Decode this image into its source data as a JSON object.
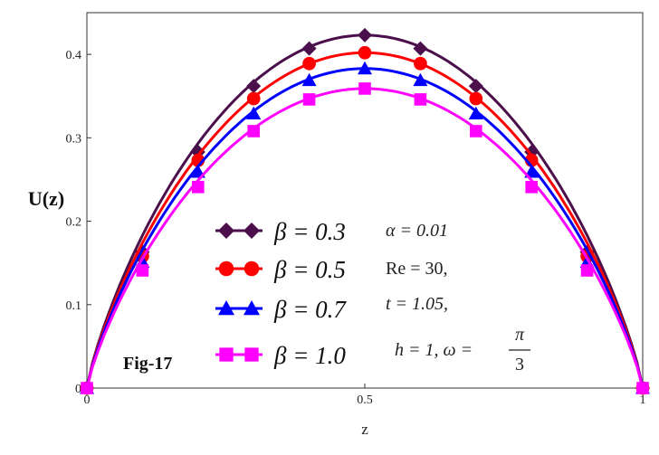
{
  "chart_data": {
    "type": "line",
    "title": "",
    "xlabel": "z",
    "ylabel": "U(z)",
    "xlim": [
      0,
      1
    ],
    "ylim": [
      0,
      0.45
    ],
    "x_ticks": [
      "0",
      "0.5",
      "1"
    ],
    "y_ticks": [
      "0",
      "0.1",
      "0.2",
      "0.3",
      "0.4"
    ],
    "grid": false,
    "legend_position": "center-left",
    "x": [
      0,
      0.1,
      0.2,
      0.3,
      0.4,
      0.5,
      0.6,
      0.7,
      0.8,
      0.9,
      1.0
    ],
    "series": [
      {
        "name": "β = 0.3",
        "color": "#4b0f4b",
        "marker": "diamond",
        "values": [
          0,
          0.163,
          0.283,
          0.362,
          0.407,
          0.423,
          0.407,
          0.362,
          0.283,
          0.163,
          0
        ]
      },
      {
        "name": "β = 0.5",
        "color": "#ff0000",
        "marker": "circle",
        "values": [
          0,
          0.158,
          0.273,
          0.347,
          0.389,
          0.402,
          0.389,
          0.347,
          0.273,
          0.158,
          0
        ]
      },
      {
        "name": "β = 0.7",
        "color": "#0000ff",
        "marker": "triangle",
        "values": [
          0,
          0.151,
          0.259,
          0.329,
          0.369,
          0.383,
          0.369,
          0.329,
          0.259,
          0.151,
          0
        ]
      },
      {
        "name": "β = 1.0",
        "color": "#ff00ff",
        "marker": "square",
        "values": [
          0,
          0.141,
          0.241,
          0.308,
          0.346,
          0.359,
          0.346,
          0.308,
          0.241,
          0.141,
          0
        ]
      }
    ],
    "annotations": {
      "params": [
        "α = 0.01",
        "Re = 30,",
        "t = 1.05,",
        "h = 1, ω ="
      ],
      "omega_num": "π",
      "omega_den": "3",
      "fig_label": "Fig-17"
    }
  }
}
